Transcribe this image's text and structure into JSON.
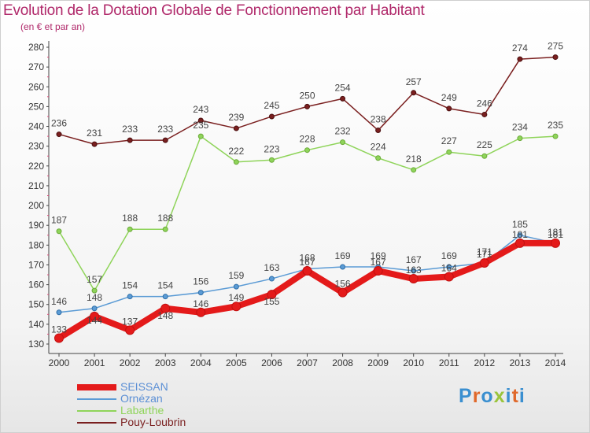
{
  "header": {
    "title": "Evolution de la Dotation Globale de Fonctionnement par Habitant",
    "subtitle": "(en € et par an)"
  },
  "logo": {
    "text": "Proxiti",
    "colors": [
      "#3a8fd0",
      "#e0682a",
      "#3a8fd0",
      "#9ac43c",
      "#3a8fd0",
      "#e0682a",
      "#3a8fd0"
    ]
  },
  "chart_data": {
    "type": "line",
    "title": "Evolution de la Dotation Globale de Fonctionnement par Habitant",
    "subtitle": "(en € et par an)",
    "x": [
      "2000",
      "2001",
      "2002",
      "2003",
      "2004",
      "2005",
      "2006",
      "2007",
      "2008",
      "2009",
      "2010",
      "2011",
      "2012",
      "2013",
      "2014"
    ],
    "ylim": [
      130,
      280
    ],
    "yticks": [
      130,
      140,
      150,
      160,
      170,
      180,
      190,
      200,
      210,
      220,
      230,
      240,
      250,
      260,
      270,
      280
    ],
    "grid": false,
    "legend": "bottom-left",
    "series": [
      {
        "name": "Pouy-Loubrin",
        "color": "#7a1f1f",
        "values": [
          236,
          231,
          233,
          233,
          243,
          239,
          245,
          250,
          254,
          238,
          257,
          249,
          246,
          274,
          275
        ]
      },
      {
        "name": "Labarthe",
        "color": "#8fd45a",
        "values": [
          187,
          157,
          188,
          188,
          235,
          222,
          223,
          228,
          232,
          224,
          218,
          227,
          225,
          234,
          235
        ]
      },
      {
        "name": "Ornézan",
        "color": "#5b9bd5",
        "values": [
          146,
          148,
          154,
          154,
          156,
          159,
          163,
          168,
          169,
          169,
          167,
          169,
          171,
          185,
          181
        ]
      },
      {
        "name": "SEISSAN",
        "color": "#e41a1a",
        "values": [
          133,
          144,
          137,
          148,
          146,
          149,
          155,
          167,
          156,
          167,
          163,
          164,
          171,
          181,
          181
        ]
      }
    ]
  }
}
